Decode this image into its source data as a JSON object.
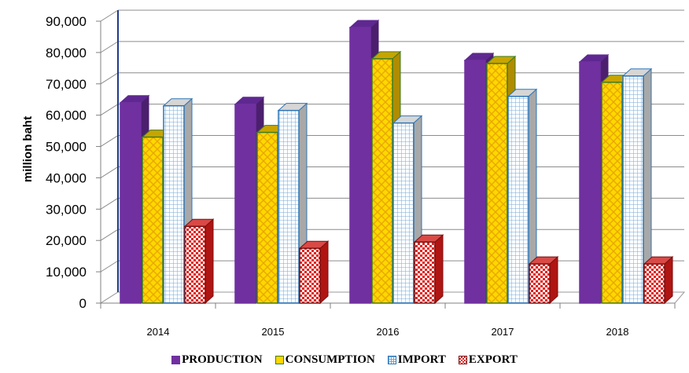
{
  "chart_data": {
    "type": "bar",
    "title": "",
    "xlabel": "",
    "ylabel": "million baht",
    "categories": [
      "2014",
      "2015",
      "2016",
      "2017",
      "2018"
    ],
    "ylim": [
      0,
      90000
    ],
    "y_ticks": [
      "0",
      "10,000",
      "20,000",
      "30,000",
      "40,000",
      "50,000",
      "60,000",
      "70,000",
      "80,000",
      "90,000"
    ],
    "grid": true,
    "legend_position": "bottom",
    "series": [
      {
        "name": "PRODUCTION",
        "values": [
          64000,
          63500,
          88000,
          77500,
          77000
        ],
        "color": "#7030A0"
      },
      {
        "name": "CONSUMPTION",
        "values": [
          53000,
          54500,
          78000,
          76500,
          70500
        ],
        "color": "#FFD700"
      },
      {
        "name": "IMPORT",
        "values": [
          63000,
          61500,
          57500,
          66000,
          72500
        ],
        "color": "#2E75B6"
      },
      {
        "name": "EXPORT",
        "values": [
          24500,
          17500,
          19500,
          12500,
          12500
        ],
        "color": "#E0201B"
      }
    ]
  }
}
